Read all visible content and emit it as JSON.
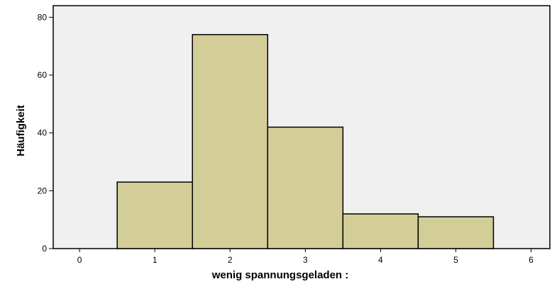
{
  "chart_data": {
    "type": "bar",
    "subtype": "histogram",
    "xlabel": "wenig spannungsgeladen :",
    "ylabel": "Häufigkeit",
    "xlim": [
      -0.35,
      6.25
    ],
    "ylim": [
      0,
      84
    ],
    "xticks": [
      0,
      1,
      2,
      3,
      4,
      5,
      6
    ],
    "yticks": [
      0,
      20,
      40,
      60,
      80
    ],
    "bins": [
      {
        "x": 1,
        "value": 23
      },
      {
        "x": 2,
        "value": 74
      },
      {
        "x": 3,
        "value": 42
      },
      {
        "x": 4,
        "value": 12
      },
      {
        "x": 5,
        "value": 11
      }
    ],
    "bin_width": 1,
    "grid": false,
    "colors": {
      "plot_background": "#f0f0f0",
      "bar_fill": "#d3ce98",
      "bar_stroke": "#000000"
    }
  }
}
